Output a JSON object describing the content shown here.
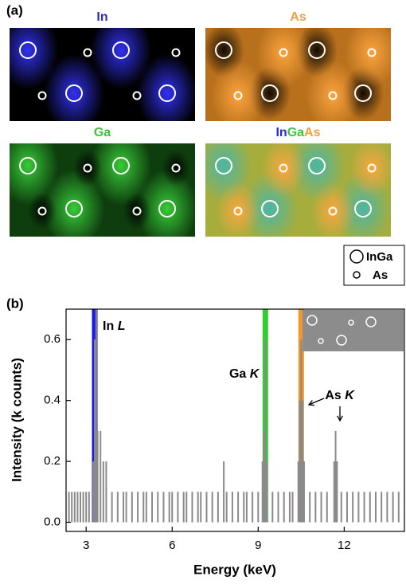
{
  "panel_a": {
    "label": "(a)",
    "maps": [
      {
        "title_parts": [
          {
            "text": "In",
            "color": "#2a2ad8"
          }
        ]
      },
      {
        "title_parts": [
          {
            "text": "As",
            "color": "#f0a040"
          }
        ]
      },
      {
        "title_parts": [
          {
            "text": "Ga",
            "color": "#3cc23c"
          }
        ]
      },
      {
        "title_parts": [
          {
            "text": "In",
            "color": "#2a2ad8"
          },
          {
            "text": "Ga",
            "color": "#3cc23c"
          },
          {
            "text": "As",
            "color": "#f0a040"
          }
        ]
      }
    ],
    "legend": [
      "InGa",
      "As"
    ]
  },
  "chart_data": {
    "type": "bar",
    "panel_label": "(b)",
    "xlabel": "Energy (keV)",
    "ylabel": "Intensity (k counts)",
    "x": [
      2.4,
      2.5,
      2.6,
      2.7,
      2.8,
      2.9,
      3.0,
      3.1,
      3.25,
      3.3,
      3.35,
      3.4,
      3.5,
      3.6,
      3.7,
      3.9,
      4.1,
      4.3,
      4.4,
      4.6,
      4.8,
      5.0,
      5.1,
      5.3,
      5.5,
      5.7,
      5.9,
      6.0,
      6.2,
      6.4,
      6.5,
      6.7,
      6.9,
      7.0,
      7.2,
      7.4,
      7.6,
      7.8,
      7.9,
      8.1,
      8.3,
      8.5,
      8.6,
      8.8,
      9.0,
      9.15,
      9.2,
      9.25,
      9.3,
      9.5,
      9.7,
      9.9,
      10.1,
      10.2,
      10.4,
      10.45,
      10.5,
      10.55,
      10.6,
      10.8,
      11.0,
      11.2,
      11.4,
      11.65,
      11.7,
      11.75,
      11.9,
      12.1,
      12.3,
      12.5,
      12.7,
      12.9,
      13.1,
      13.3,
      13.5,
      13.7,
      13.9
    ],
    "values": [
      0.1,
      0.1,
      0.1,
      0.1,
      0.1,
      0.1,
      0.1,
      0.1,
      0.2,
      0.6,
      0.7,
      0.3,
      0.3,
      0.2,
      0.2,
      0.1,
      0.1,
      0.1,
      0.1,
      0.1,
      0.1,
      0.1,
      0.1,
      0.1,
      0.1,
      0.1,
      0.1,
      0.1,
      0.1,
      0.1,
      0.1,
      0.1,
      0.1,
      0.1,
      0.1,
      0.1,
      0.1,
      0.2,
      0.1,
      0.1,
      0.1,
      0.1,
      0.1,
      0.1,
      0.1,
      0.2,
      0.3,
      0.6,
      0.2,
      0.1,
      0.1,
      0.1,
      0.1,
      0.1,
      0.2,
      0.4,
      0.6,
      0.4,
      0.2,
      0.1,
      0.1,
      0.1,
      0.1,
      0.2,
      0.3,
      0.2,
      0.1,
      0.1,
      0.1,
      0.1,
      0.1,
      0.1,
      0.1,
      0.1,
      0.1,
      0.1,
      0.1
    ],
    "color": "#8a8a8a",
    "xlim": [
      2.3,
      14.1
    ],
    "xticks": [
      3,
      6,
      9,
      12
    ],
    "ylim": [
      -0.03,
      0.7
    ],
    "yticks": [
      {
        "value": 0,
        "label": "0.0"
      },
      0.2,
      0.4,
      0.6
    ],
    "bands": [
      {
        "element": "In",
        "line": "L",
        "x": 3.3,
        "color": "#1a1ae6"
      },
      {
        "element": "Ga",
        "line": "K",
        "x": 9.25,
        "color": "#33cc33"
      },
      {
        "element": "As",
        "line": "K",
        "x": 10.5,
        "color": "#f5962a"
      }
    ]
  }
}
